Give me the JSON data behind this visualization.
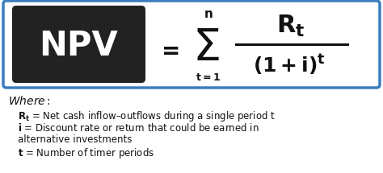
{
  "bg_color": "#ffffff",
  "box_bg": "#222222",
  "box_border_color": "#3a7dbf",
  "formula_color": "#111111",
  "fig_width": 4.74,
  "fig_height": 2.15,
  "dpi": 100,
  "def1_bold": "Rₜ",
  "def1_rest": " = Net cash inflow–outflows during a single period t",
  "def2_bold": "i",
  "def2_rest": " = Discount rate or return that could be earned in",
  "def2_cont": "alternative investments",
  "def3_bold": "t",
  "def3_rest": " = Number of timer periods"
}
